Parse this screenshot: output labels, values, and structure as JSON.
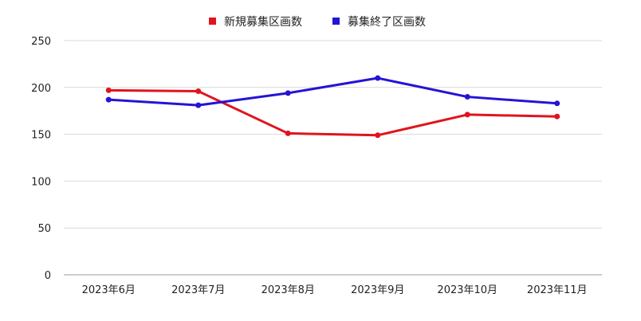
{
  "chart_data": {
    "type": "line",
    "categories": [
      "2023年6月",
      "2023年7月",
      "2023年8月",
      "2023年9月",
      "2023年10月",
      "2023年11月"
    ],
    "series": [
      {
        "name": "新規募集区画数",
        "color": "#e0141e",
        "values": [
          197,
          196,
          151,
          149,
          171,
          169
        ]
      },
      {
        "name": "募集終了区画数",
        "color": "#2414d6",
        "values": [
          187,
          181,
          194,
          210,
          190,
          183
        ]
      }
    ],
    "ylim": [
      0,
      250
    ],
    "yticks": [
      0,
      50,
      100,
      150,
      200,
      250
    ],
    "grid": true,
    "legend_position": "top-center"
  }
}
